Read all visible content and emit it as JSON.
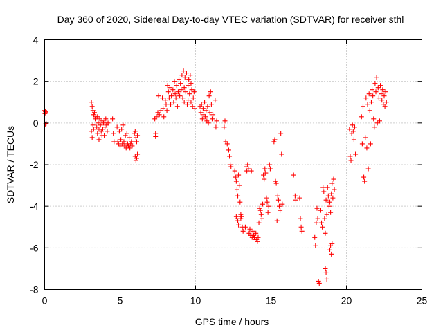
{
  "chart_data": {
    "type": "scatter",
    "title": "Day 360 of 2020, Sidereal Day-to-day VTEC variation (SDTVAR) for receiver sthl",
    "xlabel": "GPS time / hours",
    "ylabel": "SDTVAR / TECUs",
    "xlim": [
      0,
      25
    ],
    "ylim": [
      -8,
      4
    ],
    "xticks": [
      0,
      5,
      10,
      15,
      20,
      25
    ],
    "yticks": [
      -8,
      -6,
      -4,
      -2,
      0,
      2,
      4
    ],
    "grid": true,
    "marker": "plus",
    "color": "#ff0000",
    "series": [
      {
        "points": [
          [
            0.0,
            0.6
          ],
          [
            0.02,
            0.45
          ],
          [
            0.05,
            0.55
          ],
          [
            0.05,
            -0.05
          ],
          [
            0.08,
            0.5
          ],
          [
            0.1,
            -0.02
          ],
          [
            3.1,
            1.0
          ],
          [
            3.15,
            0.8
          ],
          [
            3.2,
            0.6
          ],
          [
            3.25,
            0.4
          ],
          [
            3.1,
            -0.4
          ],
          [
            3.15,
            -0.7
          ],
          [
            3.2,
            -0.1
          ],
          [
            3.25,
            -0.3
          ],
          [
            3.3,
            0.5
          ],
          [
            3.35,
            0.2
          ],
          [
            3.4,
            0.3
          ],
          [
            3.45,
            -0.2
          ],
          [
            3.5,
            -0.5
          ],
          [
            3.55,
            0.0
          ],
          [
            3.6,
            -0.8
          ],
          [
            3.65,
            0.2
          ],
          [
            3.7,
            -0.1
          ],
          [
            3.75,
            -0.4
          ],
          [
            3.8,
            0.1
          ],
          [
            3.85,
            -0.3
          ],
          [
            3.9,
            0.0
          ],
          [
            3.95,
            -0.6
          ],
          [
            4.0,
            -0.2
          ],
          [
            4.05,
            0.2
          ],
          [
            4.1,
            -0.1
          ],
          [
            4.15,
            -0.4
          ],
          [
            3.5,
            0.3
          ],
          [
            3.6,
            -0.3
          ],
          [
            3.8,
            -0.6
          ],
          [
            4.2,
            0.0
          ],
          [
            4.5,
            0.2
          ],
          [
            4.55,
            -0.5
          ],
          [
            4.6,
            -0.9
          ],
          [
            4.8,
            -0.2
          ],
          [
            4.85,
            -0.9
          ],
          [
            4.9,
            -1.0
          ],
          [
            4.95,
            -0.4
          ],
          [
            5.0,
            -1.1
          ],
          [
            5.05,
            -0.8
          ],
          [
            5.1,
            -0.3
          ],
          [
            5.15,
            -1.0
          ],
          [
            5.2,
            -0.1
          ],
          [
            5.25,
            -0.9
          ],
          [
            5.3,
            -1.1
          ],
          [
            5.35,
            -0.6
          ],
          [
            5.4,
            -1.2
          ],
          [
            5.45,
            -0.5
          ],
          [
            5.5,
            -1.0
          ],
          [
            5.55,
            -1.1
          ],
          [
            5.6,
            -0.7
          ],
          [
            5.65,
            -1.2
          ],
          [
            5.7,
            -1.0
          ],
          [
            5.75,
            -0.9
          ],
          [
            5.8,
            -1.1
          ],
          [
            5.95,
            -0.5
          ],
          [
            6.0,
            -0.4
          ],
          [
            6.05,
            -0.7
          ],
          [
            6.1,
            -0.9
          ],
          [
            6.15,
            -0.6
          ],
          [
            6.0,
            -1.6
          ],
          [
            6.05,
            -1.8
          ],
          [
            6.1,
            -1.7
          ],
          [
            6.15,
            -1.5
          ],
          [
            7.3,
            0.2
          ],
          [
            7.35,
            -0.5
          ],
          [
            7.35,
            -0.65
          ],
          [
            7.4,
            0.3
          ],
          [
            7.5,
            0.5
          ],
          [
            7.55,
            1.3
          ],
          [
            7.6,
            0.4
          ],
          [
            7.7,
            0.6
          ],
          [
            7.8,
            1.2
          ],
          [
            7.85,
            0.7
          ],
          [
            7.9,
            0.3
          ],
          [
            8.0,
            1.1
          ],
          [
            8.05,
            0.9
          ],
          [
            8.1,
            0.6
          ],
          [
            8.15,
            1.8
          ],
          [
            8.2,
            1.5
          ],
          [
            8.25,
            1.2
          ],
          [
            8.3,
            1.7
          ],
          [
            8.35,
            0.9
          ],
          [
            8.4,
            1.3
          ],
          [
            8.5,
            1.6
          ],
          [
            8.55,
            1.0
          ],
          [
            8.6,
            2.0
          ],
          [
            8.65,
            1.4
          ],
          [
            8.7,
            1.2
          ],
          [
            8.75,
            1.8
          ],
          [
            8.8,
            0.8
          ],
          [
            8.85,
            1.5
          ],
          [
            8.9,
            2.1
          ],
          [
            8.95,
            1.3
          ],
          [
            9.0,
            1.9
          ],
          [
            9.05,
            1.6
          ],
          [
            9.1,
            2.3
          ],
          [
            9.15,
            1.2
          ],
          [
            9.2,
            2.5
          ],
          [
            9.25,
            1.7
          ],
          [
            9.3,
            2.2
          ],
          [
            9.35,
            1.5
          ],
          [
            9.4,
            2.4
          ],
          [
            9.45,
            0.9
          ],
          [
            9.5,
            1.8
          ],
          [
            9.55,
            2.1
          ],
          [
            9.6,
            1.4
          ],
          [
            9.65,
            2.3
          ],
          [
            9.7,
            1.0
          ],
          [
            9.75,
            1.6
          ],
          [
            9.8,
            0.8
          ],
          [
            9.85,
            1.2
          ],
          [
            9.9,
            1.5
          ],
          [
            9.95,
            0.7
          ],
          [
            9.25,
            1.0
          ],
          [
            9.5,
            1.1
          ],
          [
            9.7,
            1.9
          ],
          [
            10.3,
            0.8
          ],
          [
            10.35,
            0.5
          ],
          [
            10.4,
            0.9
          ],
          [
            10.45,
            0.2
          ],
          [
            10.5,
            0.7
          ],
          [
            10.55,
            0.4
          ],
          [
            10.6,
            1.0
          ],
          [
            10.65,
            0.3
          ],
          [
            10.7,
            0.6
          ],
          [
            10.75,
            0.1
          ],
          [
            10.8,
            0.8
          ],
          [
            10.85,
            0.0
          ],
          [
            10.9,
            1.3
          ],
          [
            10.95,
            0.5
          ],
          [
            11.0,
            1.5
          ],
          [
            11.05,
            0.9
          ],
          [
            11.1,
            0.2
          ],
          [
            11.15,
            0.4
          ],
          [
            11.3,
            1.1
          ],
          [
            11.35,
            -0.2
          ],
          [
            11.4,
            0.1
          ],
          [
            11.9,
            -0.2
          ],
          [
            11.95,
            0.1
          ],
          [
            12.0,
            -0.9
          ],
          [
            12.1,
            -1.0
          ],
          [
            12.2,
            -1.3
          ],
          [
            12.25,
            -1.6
          ],
          [
            12.3,
            -2.0
          ],
          [
            12.35,
            -2.1
          ],
          [
            12.6,
            -2.3
          ],
          [
            12.65,
            -2.6
          ],
          [
            12.7,
            -2.8
          ],
          [
            12.75,
            -3.2
          ],
          [
            12.8,
            -3.5
          ],
          [
            12.85,
            -2.5
          ],
          [
            12.9,
            -3.0
          ],
          [
            12.95,
            -3.8
          ],
          [
            13.0,
            -4.6
          ],
          [
            12.7,
            -4.5
          ],
          [
            12.75,
            -4.6
          ],
          [
            12.8,
            -4.7
          ],
          [
            12.85,
            -4.9
          ],
          [
            13.0,
            -4.4
          ],
          [
            13.05,
            -4.5
          ],
          [
            13.1,
            -5.0
          ],
          [
            13.15,
            -5.2
          ],
          [
            13.3,
            -5.0
          ],
          [
            13.35,
            -2.1
          ],
          [
            13.4,
            -2.3
          ],
          [
            13.45,
            -2.0
          ],
          [
            13.5,
            -2.2
          ],
          [
            13.55,
            -5.3
          ],
          [
            13.6,
            -5.1
          ],
          [
            13.65,
            -5.4
          ],
          [
            13.7,
            -2.3
          ],
          [
            13.75,
            -5.5
          ],
          [
            13.8,
            -5.2
          ],
          [
            13.85,
            -5.4
          ],
          [
            13.9,
            -5.5
          ],
          [
            13.95,
            -5.6
          ],
          [
            14.0,
            -5.3
          ],
          [
            14.05,
            -5.6
          ],
          [
            14.1,
            -5.7
          ],
          [
            14.15,
            -5.5
          ],
          [
            14.2,
            -4.8
          ],
          [
            14.25,
            -4.1
          ],
          [
            14.3,
            -4.2
          ],
          [
            14.35,
            -4.4
          ],
          [
            14.4,
            -4.6
          ],
          [
            14.45,
            -3.9
          ],
          [
            14.5,
            -2.5
          ],
          [
            14.55,
            -2.7
          ],
          [
            14.6,
            -2.2
          ],
          [
            14.65,
            -2.4
          ],
          [
            14.7,
            -3.6
          ],
          [
            14.75,
            -3.8
          ],
          [
            14.8,
            -4.3
          ],
          [
            14.85,
            -4.0
          ],
          [
            14.9,
            -2.0
          ],
          [
            14.95,
            -2.2
          ],
          [
            15.2,
            -0.9
          ],
          [
            15.25,
            -0.8
          ],
          [
            15.3,
            -2.8
          ],
          [
            15.35,
            -2.9
          ],
          [
            15.4,
            -4.7
          ],
          [
            15.45,
            -3.5
          ],
          [
            15.5,
            -3.7
          ],
          [
            15.55,
            -4.0
          ],
          [
            15.6,
            -4.2
          ],
          [
            15.65,
            -0.5
          ],
          [
            15.7,
            -1.5
          ],
          [
            15.75,
            -3.9
          ],
          [
            16.5,
            -2.5
          ],
          [
            16.6,
            -3.5
          ],
          [
            16.65,
            -3.7
          ],
          [
            16.9,
            -3.6
          ],
          [
            16.95,
            -4.6
          ],
          [
            17.0,
            -5.0
          ],
          [
            17.05,
            -5.2
          ],
          [
            17.9,
            -5.5
          ],
          [
            17.95,
            -5.9
          ],
          [
            18.0,
            -4.8
          ],
          [
            18.05,
            -4.1
          ],
          [
            18.1,
            -4.6
          ],
          [
            18.15,
            -7.6
          ],
          [
            18.2,
            -7.7
          ],
          [
            18.3,
            -4.2
          ],
          [
            18.35,
            -4.8
          ],
          [
            18.4,
            -5.0
          ],
          [
            18.45,
            -3.1
          ],
          [
            18.5,
            -3.3
          ],
          [
            18.55,
            -4.6
          ],
          [
            18.6,
            -5.3
          ],
          [
            18.65,
            -3.7
          ],
          [
            18.7,
            -4.4
          ],
          [
            18.6,
            -7.0
          ],
          [
            18.65,
            -7.2
          ],
          [
            18.7,
            -7.5
          ],
          [
            18.75,
            -3.1
          ],
          [
            18.8,
            -3.5
          ],
          [
            18.85,
            -4.0
          ],
          [
            18.9,
            -3.8
          ],
          [
            18.95,
            -4.3
          ],
          [
            19.0,
            -3.4
          ],
          [
            19.05,
            -2.9
          ],
          [
            19.1,
            -3.6
          ],
          [
            19.15,
            -2.7
          ],
          [
            19.2,
            -3.2
          ],
          [
            18.9,
            -6.1
          ],
          [
            18.95,
            -5.9
          ],
          [
            19.0,
            -6.3
          ],
          [
            19.05,
            -5.8
          ],
          [
            20.2,
            -0.3
          ],
          [
            20.25,
            -1.6
          ],
          [
            20.3,
            -1.8
          ],
          [
            20.35,
            -0.5
          ],
          [
            20.4,
            -0.1
          ],
          [
            20.45,
            -0.4
          ],
          [
            20.5,
            -0.8
          ],
          [
            20.55,
            -0.2
          ],
          [
            20.6,
            -1.5
          ],
          [
            21.0,
            0.3
          ],
          [
            21.05,
            -1.0
          ],
          [
            21.1,
            0.8
          ],
          [
            21.15,
            -2.6
          ],
          [
            21.2,
            -2.8
          ],
          [
            21.25,
            -0.7
          ],
          [
            21.3,
            1.2
          ],
          [
            21.35,
            -1.2
          ],
          [
            21.4,
            0.9
          ],
          [
            21.45,
            -2.2
          ],
          [
            21.5,
            1.4
          ],
          [
            21.55,
            0.6
          ],
          [
            21.6,
            -1.0
          ],
          [
            21.65,
            1.0
          ],
          [
            21.7,
            1.6
          ],
          [
            21.75,
            1.3
          ],
          [
            21.8,
            0.2
          ],
          [
            21.85,
            -0.2
          ],
          [
            21.9,
            1.9
          ],
          [
            21.95,
            1.5
          ],
          [
            22.0,
            2.2
          ],
          [
            22.05,
            0.0
          ],
          [
            22.1,
            1.7
          ],
          [
            22.15,
            1.2
          ],
          [
            22.2,
            0.1
          ],
          [
            22.25,
            1.8
          ],
          [
            22.3,
            1.4
          ],
          [
            22.35,
            1.1
          ],
          [
            22.4,
            1.6
          ],
          [
            22.45,
            0.9
          ],
          [
            22.5,
            1.3
          ],
          [
            22.55,
            0.8
          ],
          [
            22.6,
            1.5
          ],
          [
            22.65,
            1.0
          ]
        ]
      }
    ]
  }
}
